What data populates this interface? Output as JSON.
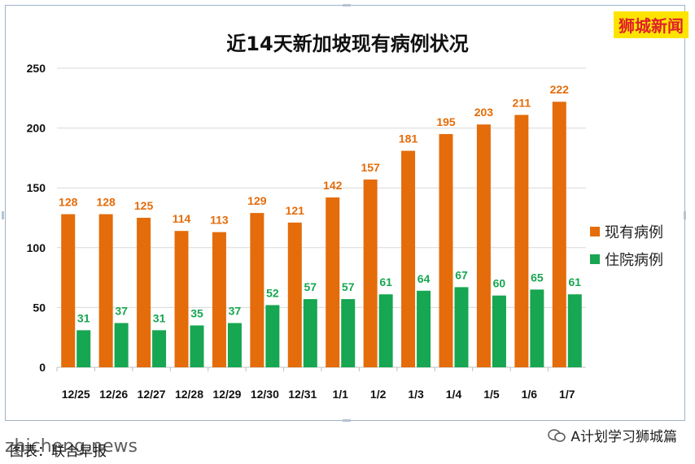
{
  "brand_tag": "狮城新闻",
  "watermark": "A计划学习狮城篇",
  "credit_text": "图表：联合早报",
  "credit_overlay": "zhicheng.news",
  "chart_data": {
    "type": "bar",
    "title": "近14天新加坡现有病例状况",
    "categories": [
      "12/25",
      "12/26",
      "12/27",
      "12/28",
      "12/29",
      "12/30",
      "12/31",
      "1/1",
      "1/2",
      "1/3",
      "1/4",
      "1/5",
      "1/6",
      "1/7"
    ],
    "series": [
      {
        "name": "现有病例",
        "color": "#e46c0a",
        "label_color": "#e46c0a",
        "values": [
          128,
          128,
          125,
          114,
          113,
          129,
          121,
          142,
          157,
          181,
          195,
          203,
          211,
          222
        ]
      },
      {
        "name": "住院病例",
        "color": "#17a651",
        "label_color": "#17a651",
        "values": [
          31,
          37,
          31,
          35,
          37,
          52,
          57,
          57,
          61,
          64,
          67,
          60,
          65,
          61
        ]
      }
    ],
    "ylim": [
      0,
      250
    ],
    "yticks": [
      0,
      50,
      100,
      150,
      200,
      250
    ],
    "grid": true,
    "legend_position": "right"
  }
}
